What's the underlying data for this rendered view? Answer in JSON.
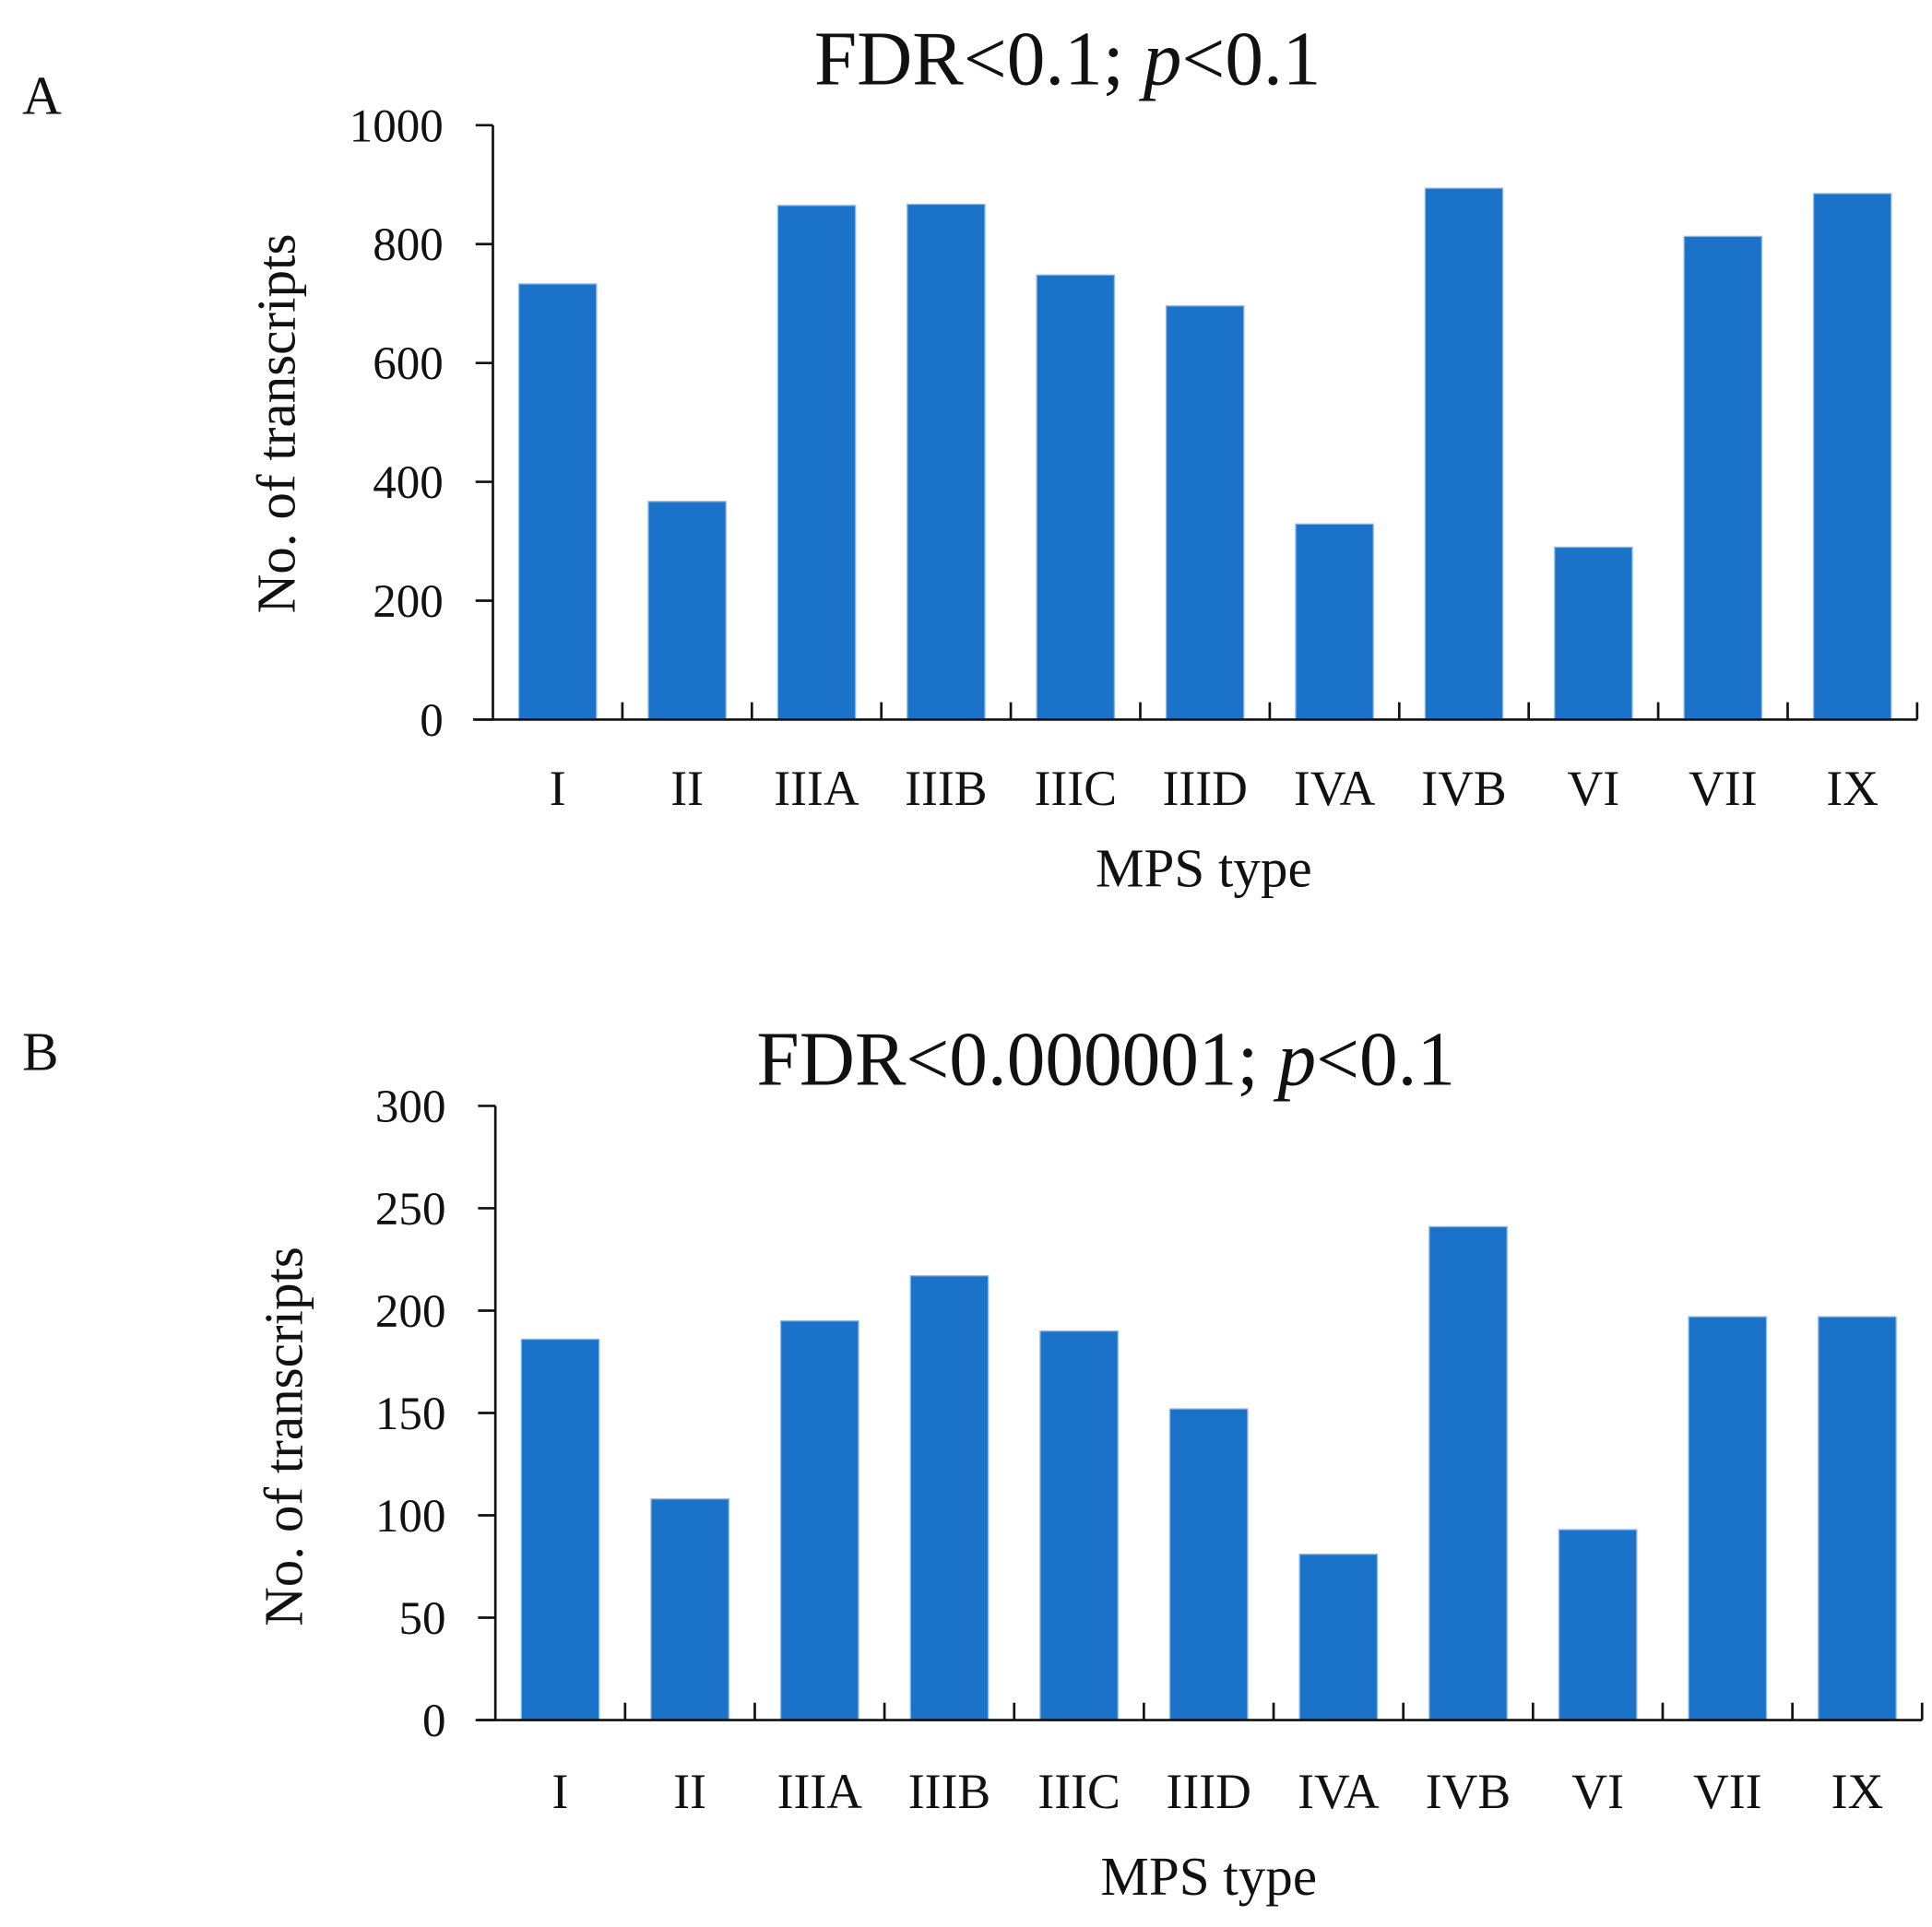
{
  "chart_data": [
    {
      "panel": "A",
      "type": "bar",
      "title": "FDR<0.1; p<0.1",
      "title_parts": {
        "pre": "FDR<0.1; ",
        "italic": "p",
        "post": "<0.1"
      },
      "xlabel": "MPS type",
      "ylabel": "No. of transcripts",
      "ylim": [
        0,
        1000
      ],
      "yticks": [
        0,
        200,
        400,
        600,
        800,
        1000
      ],
      "categories": [
        "I",
        "II",
        "IIIA",
        "IIIB",
        "IIIC",
        "IIID",
        "IVA",
        "IVB",
        "VI",
        "VII",
        "IX"
      ],
      "values": [
        733,
        367,
        865,
        867,
        748,
        696,
        329,
        894,
        290,
        813,
        885
      ],
      "color": "#1a73c8",
      "grid": false
    },
    {
      "panel": "B",
      "type": "bar",
      "title": "FDR<0.000001; p<0.1",
      "title_parts": {
        "pre": "FDR<0.000001; ",
        "italic": "p",
        "post": "<0.1"
      },
      "xlabel": "MPS type",
      "ylabel": "No. of transcripts",
      "ylim": [
        0,
        300
      ],
      "yticks": [
        0,
        50,
        100,
        150,
        200,
        250,
        300
      ],
      "categories": [
        "I",
        "II",
        "IIIA",
        "IIIB",
        "IIIC",
        "IIID",
        "IVA",
        "IVB",
        "VI",
        "VII",
        "IX"
      ],
      "values": [
        186,
        108,
        195,
        217,
        190,
        152,
        81,
        241,
        93,
        197,
        197
      ],
      "color": "#1a73c8",
      "grid": false
    }
  ]
}
